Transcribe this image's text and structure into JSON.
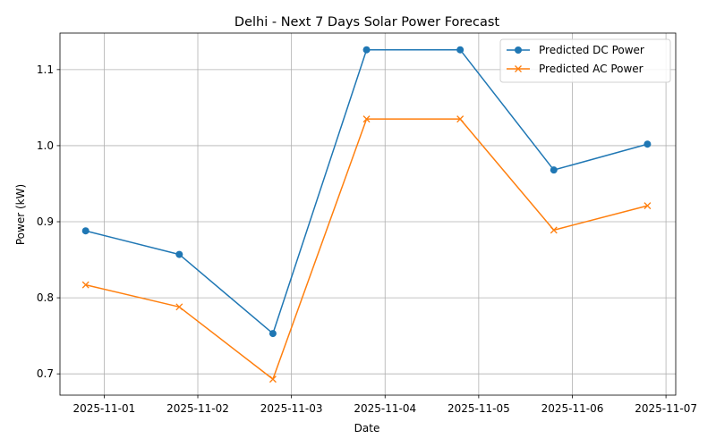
{
  "chart_data": {
    "type": "line",
    "title": "Delhi - Next 7 Days Solar Power Forecast",
    "xlabel": "Date",
    "ylabel": "Power (kW)",
    "x_ticks": [
      "2025-11-01",
      "2025-11-02",
      "2025-11-03",
      "2025-11-04",
      "2025-11-05",
      "2025-11-06",
      "2025-11-07"
    ],
    "y_ticks": [
      "0.7",
      "0.8",
      "0.9",
      "1.0",
      "1.1"
    ],
    "y_tick_values": [
      0.7,
      0.8,
      0.9,
      1.0,
      1.1
    ],
    "ylim": [
      0.672,
      1.148
    ],
    "xlim": [
      "2025-10-31T12:40",
      "2025-11-07T02:30"
    ],
    "grid": true,
    "legend_position": "top-right",
    "x": [
      "2025-10-31T19:15",
      "2025-11-01T19:15",
      "2025-11-02T19:15",
      "2025-11-03T19:15",
      "2025-11-04T19:15",
      "2025-11-05T19:15",
      "2025-11-06T19:15"
    ],
    "series": [
      {
        "name": "Predicted DC Power",
        "color": "#1f77b4",
        "marker": "circle",
        "values": [
          0.888,
          0.857,
          0.753,
          1.126,
          1.126,
          0.968,
          1.002
        ]
      },
      {
        "name": "Predicted AC Power",
        "color": "#ff7f0e",
        "marker": "x",
        "values": [
          0.817,
          0.788,
          0.693,
          1.035,
          1.035,
          0.889,
          0.921
        ]
      }
    ]
  }
}
